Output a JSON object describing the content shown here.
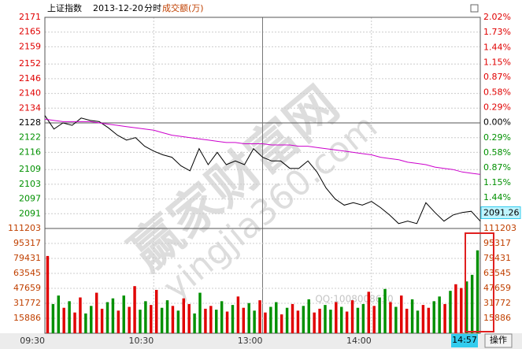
{
  "header": {
    "index": "上证指数",
    "date": "2013-12-20",
    "mode": "分时",
    "volume_label": "成交额(万)"
  },
  "chart_data": [
    {
      "type": "line",
      "x": [
        0,
        5,
        10,
        15,
        20,
        25,
        30,
        35,
        40,
        45,
        50,
        55,
        60,
        65,
        70,
        75,
        80,
        85,
        90,
        95,
        100,
        105,
        110,
        115,
        120,
        125,
        130,
        135,
        140,
        145,
        150,
        155,
        160,
        165,
        170,
        175,
        180,
        185,
        190,
        195,
        200,
        205,
        210,
        215,
        220,
        225,
        230,
        235,
        240
      ],
      "series": [
        {
          "color": "#000000",
          "values": [
            2131,
            2125.5,
            2128,
            2127,
            2130,
            2129,
            2128.5,
            2126,
            2123,
            2121,
            2122,
            2118.5,
            2116.5,
            2115,
            2114,
            2110.5,
            2108.5,
            2117.5,
            2111,
            2116,
            2111,
            2112.5,
            2111,
            2117.5,
            2114,
            2112.5,
            2112.5,
            2109.5,
            2109.5,
            2112.5,
            2108,
            2101.5,
            2097,
            2094.5,
            2095.5,
            2094.5,
            2096,
            2093.5,
            2090.5,
            2087,
            2088,
            2087,
            2095.5,
            2091.5,
            2088,
            2090.5,
            2091.5,
            2092,
            2088
          ]
        },
        {
          "color": "#cc00cc",
          "values": [
            2129.5,
            2129,
            2128.5,
            2128.5,
            2128.5,
            2128.5,
            2128,
            2127.5,
            2127,
            2126.5,
            2126,
            2125.5,
            2125,
            2124,
            2123,
            2122.5,
            2122,
            2121.5,
            2121,
            2120.5,
            2120,
            2120,
            2119.5,
            2119.5,
            2119.5,
            2119,
            2119,
            2119,
            2118.5,
            2118.5,
            2118,
            2117.5,
            2117,
            2116.5,
            2116,
            2115.5,
            2115,
            2114,
            2113.5,
            2113,
            2112,
            2111.5,
            2111,
            2110,
            2109.5,
            2109,
            2108,
            2107.5,
            2107
          ]
        }
      ],
      "xlim": [
        0,
        240
      ],
      "xticks": [
        {
          "value": 0,
          "label": "09:30"
        },
        {
          "value": 60,
          "label": "10:30"
        },
        {
          "value": 120,
          "label": "13:00"
        },
        {
          "value": 180,
          "label": "14:00"
        }
      ],
      "ylim": [
        2085,
        2171
      ],
      "yticks": [
        2171,
        2165,
        2159,
        2152,
        2146,
        2140,
        2134,
        2128,
        2122,
        2116,
        2109,
        2103,
        2097,
        2091
      ],
      "y2lim": [
        -2.03,
        2.02
      ],
      "y2ticks": [
        {
          "value": 2.02,
          "label": "2.02%"
        },
        {
          "value": 1.73,
          "label": "1.73%"
        },
        {
          "value": 1.44,
          "label": "1.44%"
        },
        {
          "value": 1.15,
          "label": "1.15%"
        },
        {
          "value": 0.87,
          "label": "0.87%"
        },
        {
          "value": 0.58,
          "label": "0.58%"
        },
        {
          "value": 0.29,
          "label": "0.29%"
        },
        {
          "value": 0,
          "label": "0.00%"
        },
        {
          "value": -0.29,
          "label": "0.29%"
        },
        {
          "value": -0.58,
          "label": "0.58%"
        },
        {
          "value": -0.87,
          "label": "0.87%"
        },
        {
          "value": -1.15,
          "label": "1.15%"
        },
        {
          "value": -1.44,
          "label": "1.44%"
        },
        {
          "value": -1.73,
          "label": "1.73%"
        }
      ],
      "up_color": "#e00000",
      "down_color": "#009000",
      "flat_color": "#000000",
      "last_value": 2091.26,
      "last_value_label": "2091.26",
      "grid": true
    },
    {
      "type": "bar",
      "x": [
        0,
        3,
        6,
        9,
        12,
        15,
        18,
        21,
        24,
        27,
        30,
        33,
        36,
        39,
        42,
        45,
        48,
        51,
        54,
        57,
        60,
        63,
        66,
        69,
        72,
        75,
        78,
        81,
        84,
        87,
        90,
        93,
        96,
        99,
        102,
        105,
        108,
        111,
        114,
        117,
        120,
        123,
        126,
        129,
        132,
        135,
        138,
        141,
        144,
        147,
        150,
        153,
        156,
        159,
        162,
        165,
        168,
        171,
        174,
        177,
        180,
        183,
        186,
        189,
        192,
        195,
        198,
        201,
        204,
        207,
        210,
        213,
        216,
        219,
        222,
        225,
        228,
        231,
        234,
        237
      ],
      "values": [
        82000,
        31000,
        40000,
        27000,
        34000,
        22000,
        38000,
        21000,
        29000,
        43000,
        26000,
        33000,
        37000,
        24000,
        40000,
        28000,
        50000,
        25000,
        34000,
        30000,
        46000,
        27000,
        35000,
        29000,
        24000,
        37000,
        31000,
        21000,
        43000,
        26000,
        29000,
        25000,
        34000,
        23000,
        30000,
        39000,
        27000,
        32000,
        24000,
        35000,
        22000,
        28000,
        33000,
        20000,
        27000,
        31000,
        24000,
        29000,
        36000,
        22000,
        26000,
        30000,
        25000,
        33000,
        28000,
        23000,
        35000,
        27000,
        31000,
        44000,
        29000,
        38000,
        47000,
        33000,
        28000,
        40000,
        26000,
        36000,
        24000,
        30000,
        27000,
        34000,
        39000,
        31000,
        45000,
        52000,
        48000,
        55000,
        62000,
        88000
      ],
      "colors": [
        "#e00000",
        "#009000",
        "#009000",
        "#e00000",
        "#009000",
        "#e00000",
        "#e00000",
        "#009000",
        "#009000",
        "#e00000",
        "#e00000",
        "#009000",
        "#009000",
        "#e00000",
        "#009000",
        "#e00000",
        "#e00000",
        "#009000",
        "#009000",
        "#e00000",
        "#e00000",
        "#009000",
        "#009000",
        "#e00000",
        "#009000",
        "#e00000",
        "#e00000",
        "#009000",
        "#009000",
        "#e00000",
        "#e00000",
        "#009000",
        "#009000",
        "#e00000",
        "#009000",
        "#e00000",
        "#e00000",
        "#009000",
        "#009000",
        "#e00000",
        "#e00000",
        "#009000",
        "#009000",
        "#e00000",
        "#009000",
        "#e00000",
        "#e00000",
        "#009000",
        "#009000",
        "#e00000",
        "#e00000",
        "#009000",
        "#009000",
        "#e00000",
        "#009000",
        "#e00000",
        "#e00000",
        "#009000",
        "#009000",
        "#e00000",
        "#e00000",
        "#009000",
        "#009000",
        "#e00000",
        "#009000",
        "#e00000",
        "#e00000",
        "#009000",
        "#009000",
        "#e00000",
        "#e00000",
        "#009000",
        "#009000",
        "#e00000",
        "#009000",
        "#e00000",
        "#e00000",
        "#009000",
        "#009000",
        "#009000"
      ],
      "xlim": [
        0,
        240
      ],
      "ylim": [
        0,
        111203
      ],
      "yticks": [
        111203,
        95317,
        79431,
        63545,
        47659,
        31772,
        15886
      ],
      "tick_color": "#c04000"
    }
  ],
  "watermark": {
    "brand": "赢家财富网",
    "site": "yingjia360.com",
    "qq": "QQ:1008008630"
  },
  "footer": {
    "current_time": "14:57",
    "action": "操作"
  }
}
